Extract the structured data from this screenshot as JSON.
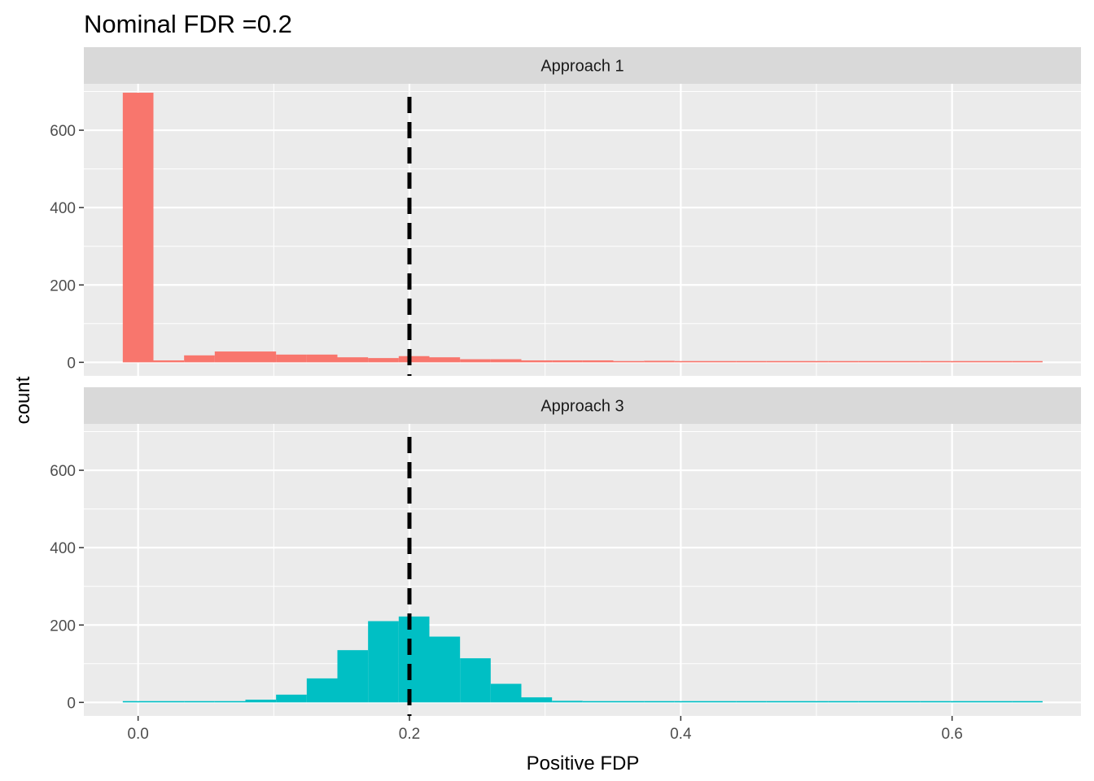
{
  "chart_data": {
    "type": "bar",
    "title": "Nominal FDR =0.2",
    "xlabel": "Positive FDP",
    "ylabel": "count",
    "xlim": [
      -0.04,
      0.695
    ],
    "ylim": [
      -35,
      720
    ],
    "x_ticks": [
      {
        "value": 0.0,
        "label": "0.0"
      },
      {
        "value": 0.2,
        "label": "0.2"
      },
      {
        "value": 0.4,
        "label": "0.4"
      },
      {
        "value": 0.6,
        "label": "0.6"
      }
    ],
    "y_ticks": [
      {
        "value": 0,
        "label": "0"
      },
      {
        "value": 200,
        "label": "200"
      },
      {
        "value": 400,
        "label": "400"
      },
      {
        "value": 600,
        "label": "600"
      }
    ],
    "reference_line": {
      "x": 0.2,
      "style": "dashed",
      "color": "#000000"
    },
    "bin_centers": [
      0.0,
      0.0226,
      0.0452,
      0.0678,
      0.0904,
      0.113,
      0.1356,
      0.1582,
      0.1808,
      0.2034,
      0.226,
      0.2486,
      0.2712,
      0.2938,
      0.3164,
      0.339,
      0.3616,
      0.3842,
      0.4068,
      0.4294,
      0.452,
      0.4746,
      0.4972,
      0.5198,
      0.5424,
      0.565,
      0.5876,
      0.6102,
      0.6328,
      0.6554
    ],
    "panels": [
      {
        "label": "Approach 1",
        "color": "#F8766D",
        "values": [
          697,
          5,
          18,
          28,
          28,
          20,
          20,
          13,
          11,
          16,
          13,
          8,
          8,
          5,
          5,
          5,
          3,
          4,
          3,
          2,
          3,
          3,
          3,
          2,
          2,
          1,
          2,
          1,
          2,
          2
        ]
      },
      {
        "label": "Approach 3",
        "color": "#00BFC4",
        "values": [
          0,
          0,
          0,
          1,
          7,
          20,
          62,
          135,
          210,
          222,
          170,
          114,
          48,
          13,
          4,
          2,
          0,
          0,
          0,
          0,
          0,
          0,
          0,
          0,
          0,
          0,
          0,
          0,
          0,
          0
        ]
      }
    ]
  }
}
